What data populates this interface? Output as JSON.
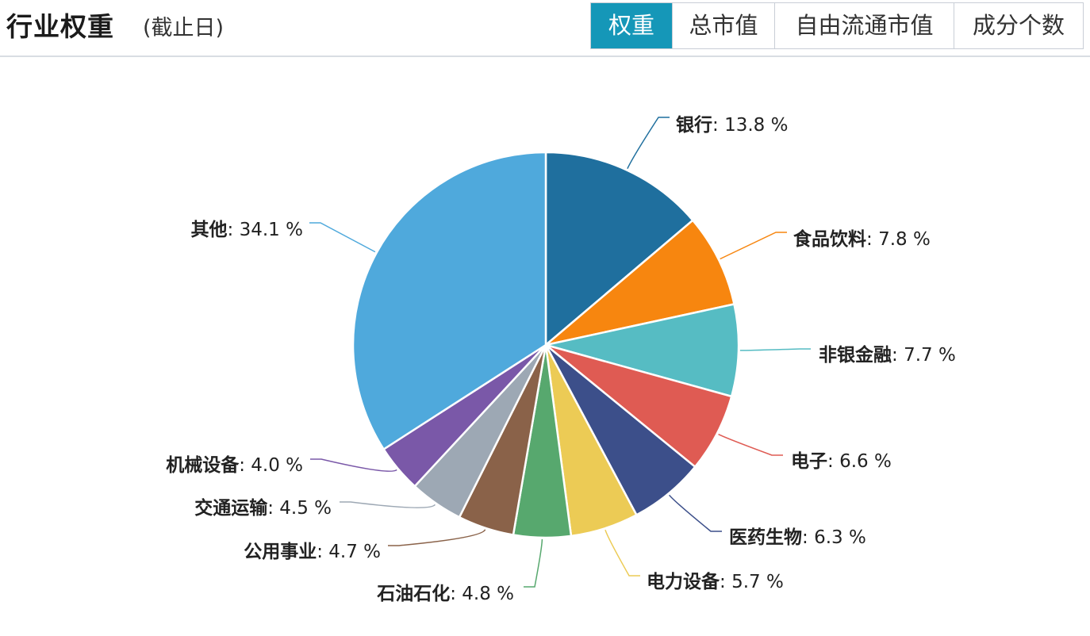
{
  "header": {
    "title": "行业权重",
    "subtitle": "(截止日)",
    "tabs": [
      {
        "label": "权重",
        "active": true
      },
      {
        "label": "总市值",
        "active": false
      },
      {
        "label": "自由流通市值",
        "active": false
      },
      {
        "label": "成分个数",
        "active": false
      }
    ]
  },
  "colors": {
    "accent": "#1597b8"
  },
  "chart_data": {
    "type": "pie",
    "title": "",
    "slices": [
      {
        "name": "银行",
        "value": 13.8,
        "label": "13.8 %",
        "color": "#1f6f9e"
      },
      {
        "name": "食品饮料",
        "value": 7.8,
        "label": "7.8 %",
        "color": "#f7860f"
      },
      {
        "name": "非银金融",
        "value": 7.7,
        "label": "7.7 %",
        "color": "#56bcc3"
      },
      {
        "name": "电子",
        "value": 6.6,
        "label": "6.6 %",
        "color": "#df5b53"
      },
      {
        "name": "医药生物",
        "value": 6.3,
        "label": "6.3 %",
        "color": "#3c4f8a"
      },
      {
        "name": "电力设备",
        "value": 5.7,
        "label": "5.7 %",
        "color": "#eccb55"
      },
      {
        "name": "石油石化",
        "value": 4.8,
        "label": "4.8 %",
        "color": "#57a86e"
      },
      {
        "name": "公用事业",
        "value": 4.7,
        "label": "4.7 %",
        "color": "#8a6249"
      },
      {
        "name": "交通运输",
        "value": 4.5,
        "label": "4.5 %",
        "color": "#9da8b4"
      },
      {
        "name": "机械设备",
        "value": 4.0,
        "label": "4.0 %",
        "color": "#7a58a8"
      },
      {
        "name": "其他",
        "value": 34.1,
        "label": "34.1 %",
        "color": "#4fa9dc"
      }
    ]
  }
}
